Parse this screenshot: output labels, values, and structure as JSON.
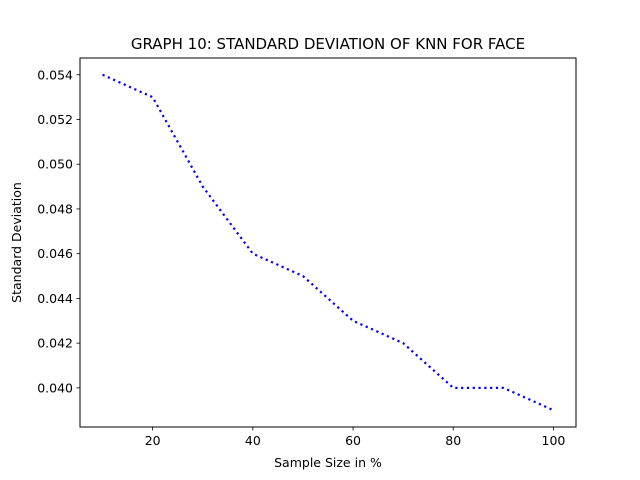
{
  "chart_data": {
    "type": "line",
    "title": "GRAPH 10: STANDARD DEVIATION OF KNN FOR FACE",
    "xlabel": "Sample Size in %",
    "ylabel": "Standard Deviation",
    "x": [
      10,
      20,
      30,
      40,
      50,
      60,
      70,
      80,
      90,
      100
    ],
    "series": [
      {
        "values": [
          0.054,
          0.053,
          0.049,
          0.046,
          0.045,
          0.043,
          0.042,
          0.04,
          0.04,
          0.039
        ],
        "color": "#0000ff",
        "line_style": "dotted"
      }
    ],
    "xlim": [
      5.5,
      104.5
    ],
    "ylim": [
      0.03825,
      0.05475
    ],
    "xticks": [
      20,
      40,
      60,
      80,
      100
    ],
    "xtick_labels": [
      "20",
      "40",
      "60",
      "80",
      "100"
    ],
    "yticks": [
      0.04,
      0.042,
      0.044,
      0.046,
      0.048,
      0.05,
      0.052,
      0.054
    ],
    "ytick_labels": [
      "0.040",
      "0.042",
      "0.044",
      "0.046",
      "0.048",
      "0.050",
      "0.052",
      "0.054"
    ],
    "grid": false,
    "legend": false
  }
}
